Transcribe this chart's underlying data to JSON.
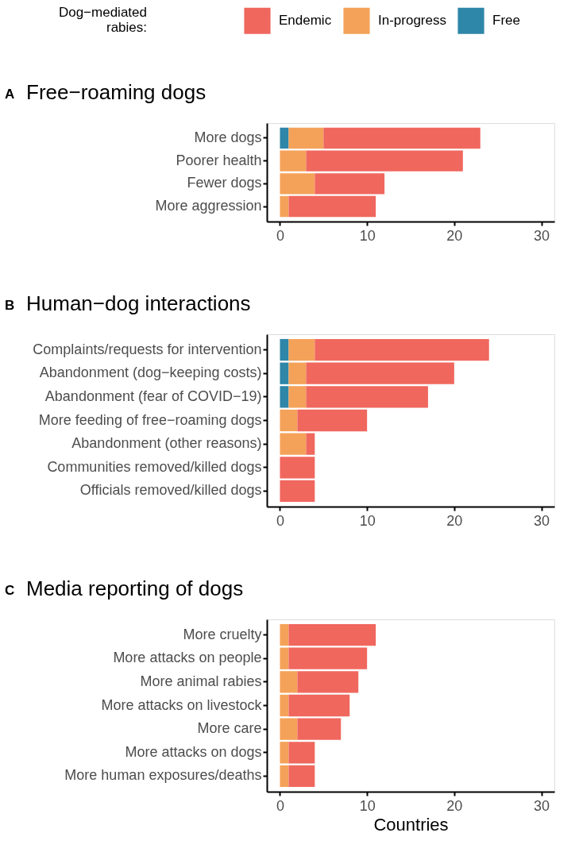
{
  "chart_data": [
    {
      "type": "bar",
      "orientation": "horizontal",
      "stacked": true,
      "title": "Free−roaming dogs",
      "annotations": [
        "A"
      ],
      "legend": "top",
      "legend_title": "Dog−mediated rabies:",
      "grid": false,
      "categories": [
        "More dogs",
        "Poorer health",
        "Fewer dogs",
        "More aggression"
      ],
      "series": [
        {
          "name": "Free",
          "color": "#2e86a8",
          "values": [
            1,
            0,
            0,
            0
          ]
        },
        {
          "name": "In-progress",
          "color": "#f4a259",
          "values": [
            4,
            3,
            4,
            1
          ]
        },
        {
          "name": "Endemic",
          "color": "#f0675e",
          "values": [
            18,
            18,
            8,
            10
          ]
        }
      ],
      "xlim": [
        -1.5,
        31.5
      ],
      "xticks": [
        0,
        10,
        20,
        30
      ]
    },
    {
      "type": "bar",
      "orientation": "horizontal",
      "stacked": true,
      "title": "Human−dog interactions",
      "annotations": [
        "B"
      ],
      "legend": false,
      "grid": false,
      "categories": [
        "Complaints/requests for intervention",
        "Abandonment (dog−keeping costs)",
        "Abandonment (fear of COVID−19)",
        "More feeding of free−roaming dogs",
        "Abandonment (other reasons)",
        "Communities removed/killed dogs",
        "Officials removed/killed dogs"
      ],
      "series": [
        {
          "color": "#2e86a8",
          "values": [
            1,
            1,
            1,
            0,
            0,
            0,
            0
          ]
        },
        {
          "color": "#f4a259",
          "values": [
            3,
            2,
            2,
            2,
            3,
            0,
            0
          ]
        },
        {
          "color": "#f0675e",
          "values": [
            20,
            17,
            14,
            8,
            1,
            4,
            4
          ]
        }
      ],
      "xlim": [
        -1.5,
        31.5
      ],
      "xticks": [
        0,
        10,
        20,
        30
      ]
    },
    {
      "type": "bar",
      "orientation": "horizontal",
      "stacked": true,
      "title": "Media reporting of dogs",
      "annotations": [
        "C"
      ],
      "legend": false,
      "grid": false,
      "xlabel": "Countries",
      "categories": [
        "More cruelty",
        "More attacks on people",
        "More animal rabies",
        "More attacks on livestock",
        "More care",
        "More attacks on dogs",
        "More human exposures/deaths"
      ],
      "series": [
        {
          "color": "#2e86a8",
          "values": [
            0,
            0,
            0,
            0,
            0,
            0,
            0
          ]
        },
        {
          "color": "#f4a259",
          "values": [
            1,
            1,
            2,
            1,
            2,
            1,
            1
          ]
        },
        {
          "color": "#f0675e",
          "values": [
            10,
            9,
            7,
            7,
            5,
            3,
            3
          ]
        }
      ],
      "xlim": [
        -1.5,
        31.5
      ],
      "xticks": [
        0,
        10,
        20,
        30
      ]
    }
  ]
}
